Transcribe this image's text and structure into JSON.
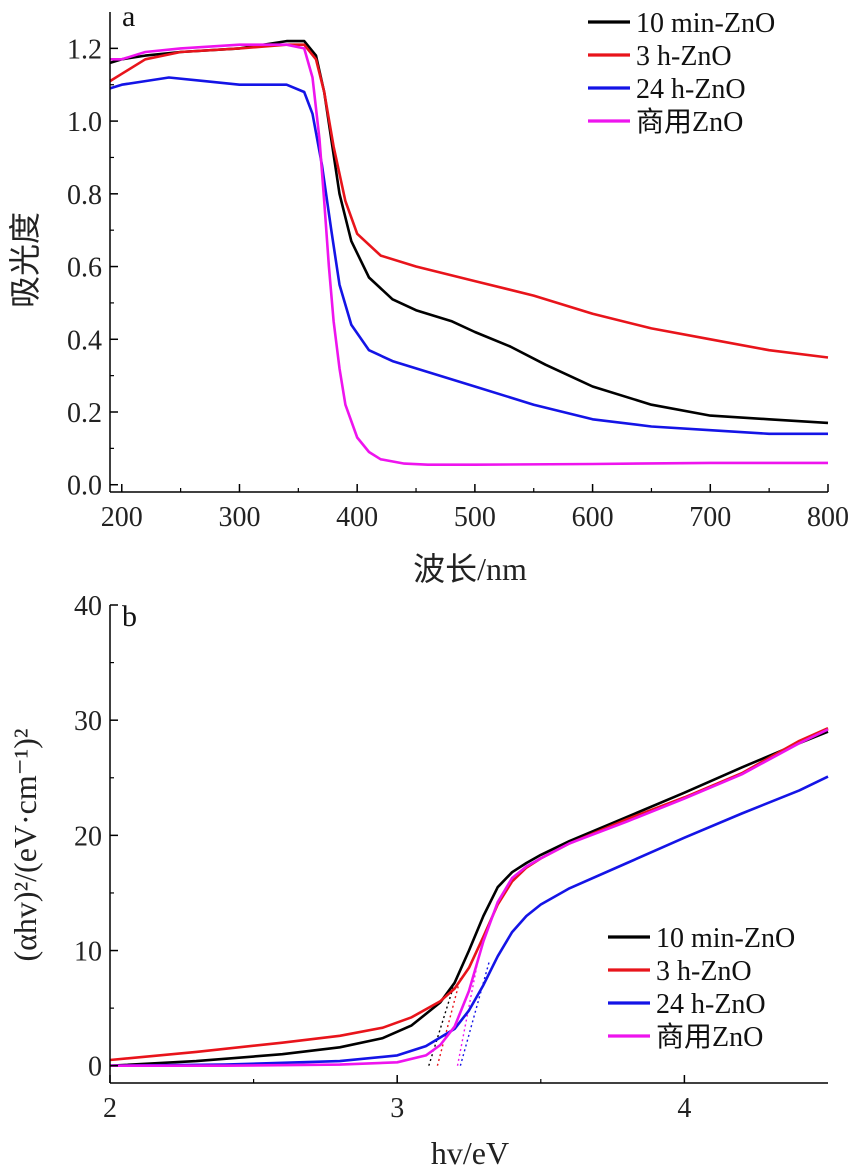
{
  "chart_data": [
    {
      "type": "line",
      "panel_label": "a",
      "xlabel": "波长/nm",
      "ylabel": "吸光度",
      "xlim": [
        190,
        800
      ],
      "ylim": [
        -0.02,
        1.3
      ],
      "xticks": [
        200,
        300,
        400,
        500,
        600,
        700,
        800
      ],
      "yticks": [
        0.0,
        0.2,
        0.4,
        0.6,
        0.8,
        1.0,
        1.2
      ],
      "ytick_labels": [
        "0.0",
        "0.2",
        "0.4",
        "0.6",
        "0.8",
        "1.0",
        "1.2"
      ],
      "legend_position": "top-right",
      "series": [
        {
          "name": "10 min-ZnO",
          "color": "#000000",
          "x": [
            190,
            200,
            220,
            250,
            300,
            340,
            355,
            365,
            372,
            378,
            385,
            395,
            410,
            430,
            450,
            480,
            500,
            530,
            560,
            600,
            650,
            700,
            750,
            800
          ],
          "y": [
            1.16,
            1.17,
            1.18,
            1.19,
            1.2,
            1.22,
            1.22,
            1.18,
            1.08,
            0.95,
            0.8,
            0.67,
            0.57,
            0.51,
            0.48,
            0.45,
            0.42,
            0.38,
            0.33,
            0.27,
            0.22,
            0.19,
            0.18,
            0.17
          ]
        },
        {
          "name": "3 h-ZnO",
          "color": "#e8141b",
          "x": [
            190,
            200,
            220,
            250,
            300,
            340,
            355,
            365,
            372,
            380,
            390,
            400,
            420,
            450,
            500,
            550,
            600,
            650,
            700,
            750,
            800
          ],
          "y": [
            1.11,
            1.13,
            1.17,
            1.19,
            1.2,
            1.21,
            1.21,
            1.17,
            1.08,
            0.93,
            0.78,
            0.69,
            0.63,
            0.6,
            0.56,
            0.52,
            0.47,
            0.43,
            0.4,
            0.37,
            0.35
          ]
        },
        {
          "name": "24 h-ZnO",
          "color": "#1414e6",
          "x": [
            190,
            200,
            220,
            240,
            270,
            300,
            340,
            355,
            362,
            370,
            378,
            385,
            395,
            410,
            430,
            460,
            500,
            550,
            600,
            650,
            700,
            750,
            800
          ],
          "y": [
            1.09,
            1.1,
            1.11,
            1.12,
            1.11,
            1.1,
            1.1,
            1.08,
            1.02,
            0.88,
            0.7,
            0.55,
            0.44,
            0.37,
            0.34,
            0.31,
            0.27,
            0.22,
            0.18,
            0.16,
            0.15,
            0.14,
            0.14
          ]
        },
        {
          "name": "商用ZnO",
          "color": "#ee14ee",
          "x": [
            190,
            200,
            220,
            250,
            300,
            340,
            355,
            362,
            368,
            372,
            376,
            380,
            385,
            390,
            400,
            410,
            420,
            440,
            460,
            500,
            600,
            700,
            800
          ],
          "y": [
            1.17,
            1.17,
            1.19,
            1.2,
            1.21,
            1.21,
            1.2,
            1.12,
            0.95,
            0.78,
            0.6,
            0.45,
            0.32,
            0.22,
            0.13,
            0.09,
            0.07,
            0.058,
            0.055,
            0.055,
            0.057,
            0.06,
            0.06
          ]
        }
      ]
    },
    {
      "type": "line",
      "panel_label": "b",
      "xlabel": "hv/eV",
      "ylabel": "(αhv)²/(eV·cm⁻¹)²",
      "xlim": [
        2.0,
        4.5
      ],
      "ylim": [
        -1.5,
        40
      ],
      "xticks": [
        2,
        3,
        4
      ],
      "yticks": [
        0,
        10,
        20,
        30,
        40
      ],
      "legend_position": "bottom-right",
      "series": [
        {
          "name": "10 min-ZnO",
          "color": "#000000",
          "x": [
            2.0,
            2.3,
            2.6,
            2.8,
            2.95,
            3.05,
            3.15,
            3.2,
            3.25,
            3.3,
            3.35,
            3.4,
            3.45,
            3.5,
            3.6,
            3.8,
            4.0,
            4.2,
            4.4,
            4.5
          ],
          "y": [
            0.0,
            0.4,
            1.0,
            1.6,
            2.4,
            3.5,
            5.5,
            7.2,
            10.0,
            13.0,
            15.5,
            16.8,
            17.6,
            18.3,
            19.5,
            21.6,
            23.7,
            25.9,
            28.0,
            29.0
          ]
        },
        {
          "name": "3 h-ZnO",
          "color": "#e8141b",
          "x": [
            2.0,
            2.3,
            2.6,
            2.8,
            2.95,
            3.05,
            3.15,
            3.2,
            3.25,
            3.3,
            3.35,
            3.4,
            3.45,
            3.5,
            3.6,
            3.8,
            4.0,
            4.2,
            4.4,
            4.5
          ],
          "y": [
            0.5,
            1.2,
            2.0,
            2.6,
            3.3,
            4.2,
            5.6,
            6.7,
            8.5,
            11.2,
            14.0,
            16.0,
            17.2,
            18.0,
            19.3,
            21.4,
            23.3,
            25.4,
            28.2,
            29.3
          ]
        },
        {
          "name": "24 h-ZnO",
          "color": "#1414e6",
          "x": [
            2.0,
            2.4,
            2.8,
            3.0,
            3.1,
            3.2,
            3.25,
            3.3,
            3.35,
            3.4,
            3.45,
            3.5,
            3.6,
            3.8,
            4.0,
            4.2,
            4.4,
            4.5
          ],
          "y": [
            0.0,
            0.1,
            0.4,
            0.9,
            1.7,
            3.2,
            4.8,
            7.0,
            9.5,
            11.6,
            13.0,
            14.0,
            15.4,
            17.6,
            19.8,
            21.9,
            23.9,
            25.1
          ]
        },
        {
          "name": "商用ZnO",
          "color": "#ee14ee",
          "x": [
            2.0,
            2.4,
            2.8,
            3.0,
            3.1,
            3.15,
            3.2,
            3.25,
            3.3,
            3.35,
            3.4,
            3.45,
            3.5,
            3.6,
            3.8,
            4.0,
            4.2,
            4.4,
            4.5
          ],
          "y": [
            0.0,
            0.0,
            0.1,
            0.3,
            0.9,
            1.8,
            3.4,
            6.5,
            10.8,
            14.2,
            16.3,
            17.3,
            18.0,
            19.3,
            21.2,
            23.2,
            25.3,
            28.0,
            29.2
          ]
        }
      ],
      "tangent_lines": [
        {
          "color": "#000000",
          "x": [
            3.11,
            3.2
          ],
          "y": [
            0,
            7.2
          ]
        },
        {
          "color": "#e8141b",
          "x": [
            3.14,
            3.22
          ],
          "y": [
            0,
            7.6
          ]
        },
        {
          "color": "#1414e6",
          "x": [
            3.22,
            3.32
          ],
          "y": [
            0,
            9.0
          ]
        },
        {
          "color": "#ee14ee",
          "x": [
            3.21,
            3.28
          ],
          "y": [
            0,
            9.0
          ]
        }
      ]
    }
  ]
}
